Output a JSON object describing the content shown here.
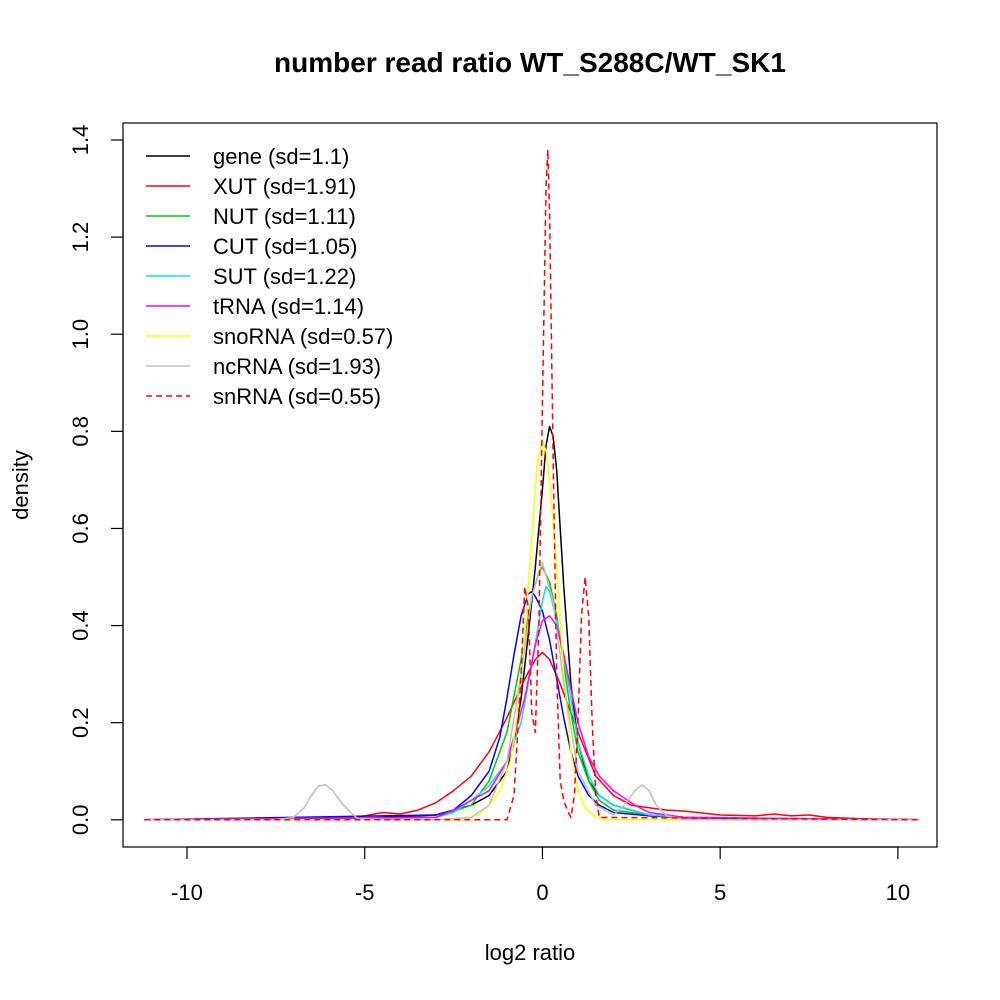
{
  "chart_data": {
    "type": "line",
    "title": "number read ratio WT_S288C/WT_SK1",
    "xlabel": "log2 ratio",
    "ylabel": "density",
    "xlim": [
      -11.8,
      11.1
    ],
    "ylim": [
      -0.056,
      1.435
    ],
    "xticks": [
      -10,
      -5,
      0,
      5,
      10
    ],
    "xtick_labels": [
      "-10",
      "-5",
      "0",
      "5",
      "10"
    ],
    "yticks": [
      0.0,
      0.2,
      0.4,
      0.6,
      0.8,
      1.0,
      1.2,
      1.4
    ],
    "ytick_labels": [
      "0.0",
      "0.2",
      "0.4",
      "0.6",
      "0.8",
      "1.0",
      "1.2",
      "1.4"
    ],
    "grid": false,
    "legend_position": "top-left",
    "series": [
      {
        "name": "gene (sd=1.1)",
        "color": "#000000",
        "dash": false,
        "x": [
          -11.2,
          -6,
          -3,
          -2,
          -1.5,
          -1.0,
          -0.8,
          -0.6,
          -0.4,
          -0.2,
          0.0,
          0.1,
          0.2,
          0.3,
          0.4,
          0.5,
          0.6,
          0.8,
          1.0,
          1.3,
          1.6,
          2.0,
          2.5,
          3.0,
          4.0,
          6.0,
          10.6
        ],
        "y": [
          0,
          0,
          0.01,
          0.03,
          0.05,
          0.1,
          0.16,
          0.25,
          0.38,
          0.52,
          0.68,
          0.77,
          0.81,
          0.79,
          0.72,
          0.6,
          0.48,
          0.28,
          0.16,
          0.08,
          0.05,
          0.03,
          0.02,
          0.01,
          0.005,
          0.003,
          0
        ]
      },
      {
        "name": "XUT (sd=1.91)",
        "color": "#ff0000",
        "dash": false,
        "x": [
          -11.2,
          -6,
          -5,
          -4.5,
          -4,
          -3.5,
          -3,
          -2.5,
          -2,
          -1.5,
          -1,
          -0.5,
          -0.2,
          0,
          0.2,
          0.5,
          1.0,
          1.5,
          2.0,
          2.5,
          3.0,
          3.5,
          4.0,
          5.0,
          6.0,
          6.5,
          7.0,
          7.5,
          8.0,
          9.0,
          10.6
        ],
        "y": [
          0,
          0.002,
          0.008,
          0.015,
          0.012,
          0.02,
          0.035,
          0.06,
          0.09,
          0.14,
          0.21,
          0.29,
          0.33,
          0.345,
          0.33,
          0.28,
          0.18,
          0.09,
          0.05,
          0.03,
          0.025,
          0.02,
          0.018,
          0.01,
          0.008,
          0.012,
          0.008,
          0.01,
          0.005,
          0.002,
          0
        ]
      },
      {
        "name": "NUT (sd=1.11)",
        "color": "#00cc00",
        "dash": false,
        "x": [
          -11.2,
          -3,
          -2,
          -1.5,
          -1.0,
          -0.6,
          -0.3,
          -0.1,
          0.0,
          0.2,
          0.4,
          0.6,
          0.8,
          1.0,
          1.3,
          1.6,
          2.0,
          3.0,
          4.0,
          10.6
        ],
        "y": [
          0,
          0.005,
          0.03,
          0.08,
          0.18,
          0.33,
          0.46,
          0.51,
          0.52,
          0.49,
          0.42,
          0.32,
          0.22,
          0.14,
          0.08,
          0.04,
          0.02,
          0.01,
          0.005,
          0
        ]
      },
      {
        "name": "CUT (sd=1.05)",
        "color": "#0000ff",
        "dash": false,
        "x": [
          -11.2,
          -3,
          -2.5,
          -2.0,
          -1.5,
          -1.2,
          -1.0,
          -0.8,
          -0.6,
          -0.4,
          -0.3,
          -0.2,
          0.0,
          0.2,
          0.4,
          0.6,
          0.8,
          1.0,
          1.3,
          1.6,
          2.0,
          3.0,
          4.0,
          10.6
        ],
        "y": [
          0,
          0.01,
          0.02,
          0.05,
          0.1,
          0.17,
          0.25,
          0.34,
          0.42,
          0.465,
          0.47,
          0.46,
          0.43,
          0.37,
          0.29,
          0.21,
          0.14,
          0.09,
          0.05,
          0.03,
          0.015,
          0.008,
          0.004,
          0
        ]
      },
      {
        "name": "SUT (sd=1.22)",
        "color": "#00e5ee",
        "dash": false,
        "x": [
          -11.2,
          -3,
          -2.5,
          -2,
          -1.5,
          -1.0,
          -0.6,
          -0.3,
          0.0,
          0.1,
          0.2,
          0.5,
          0.8,
          1.0,
          1.3,
          1.6,
          2.0,
          2.5,
          3.0,
          4.0,
          10.6
        ],
        "y": [
          0,
          0.005,
          0.015,
          0.04,
          0.07,
          0.12,
          0.2,
          0.32,
          0.45,
          0.48,
          0.47,
          0.38,
          0.25,
          0.16,
          0.09,
          0.05,
          0.03,
          0.02,
          0.01,
          0.005,
          0
        ]
      },
      {
        "name": "tRNA (sd=1.14)",
        "color": "#ff00ff",
        "dash": false,
        "x": [
          -11.2,
          -3,
          -2.5,
          -2,
          -1.5,
          -1.0,
          -0.5,
          -0.2,
          0.0,
          0.2,
          0.4,
          0.6,
          0.8,
          1.0,
          1.3,
          1.6,
          2.0,
          2.3,
          2.6,
          3.0,
          4.0,
          10.6
        ],
        "y": [
          0,
          0.005,
          0.02,
          0.04,
          0.06,
          0.12,
          0.25,
          0.36,
          0.41,
          0.42,
          0.4,
          0.34,
          0.27,
          0.2,
          0.13,
          0.09,
          0.06,
          0.045,
          0.03,
          0.015,
          0.005,
          0
        ]
      },
      {
        "name": "snoRNA (sd=0.57)",
        "color": "#ffff00",
        "dash": false,
        "x": [
          -11.2,
          -2.2,
          -1.8,
          -1.5,
          -1.2,
          -0.9,
          -0.7,
          -0.5,
          -0.3,
          -0.15,
          0.0,
          0.1,
          0.2,
          0.4,
          0.6,
          0.8,
          1.0,
          1.2,
          1.5,
          1.8,
          10.6
        ],
        "y": [
          0,
          0,
          0.01,
          0.03,
          0.06,
          0.12,
          0.22,
          0.38,
          0.58,
          0.73,
          0.78,
          0.76,
          0.7,
          0.52,
          0.3,
          0.14,
          0.06,
          0.025,
          0.005,
          0,
          0
        ]
      },
      {
        "name": "ncRNA (sd=1.93)",
        "color": "#bebebe",
        "dash": false,
        "x": [
          -11.2,
          -7.5,
          -7.0,
          -6.7,
          -6.5,
          -6.3,
          -6.1,
          -5.9,
          -5.6,
          -5.2,
          -3,
          -2.0,
          -1.5,
          -1.0,
          -0.6,
          -0.3,
          0.0,
          0.3,
          0.6,
          1.0,
          1.5,
          2.0,
          2.3,
          2.6,
          2.8,
          3.0,
          3.2,
          3.5,
          4.0,
          10.6
        ],
        "y": [
          0,
          0,
          0.005,
          0.025,
          0.05,
          0.07,
          0.072,
          0.06,
          0.03,
          0.002,
          0,
          0.005,
          0.03,
          0.12,
          0.3,
          0.46,
          0.53,
          0.45,
          0.28,
          0.1,
          0.03,
          0.01,
          0.03,
          0.06,
          0.072,
          0.06,
          0.03,
          0.008,
          0,
          0
        ]
      },
      {
        "name": "snRNA (sd=0.55)",
        "color": "#ff0000",
        "dash": true,
        "x": [
          -11.2,
          -1.0,
          -0.8,
          -0.6,
          -0.5,
          -0.4,
          -0.3,
          -0.2,
          -0.1,
          0.0,
          0.1,
          0.15,
          0.2,
          0.3,
          0.4,
          0.5,
          0.6,
          0.7,
          0.8,
          0.9,
          1.0,
          1.1,
          1.2,
          1.3,
          1.4,
          1.5,
          1.6,
          10.6
        ],
        "y": [
          0,
          0,
          0.05,
          0.3,
          0.48,
          0.44,
          0.22,
          0.18,
          0.4,
          0.85,
          1.3,
          1.38,
          1.25,
          0.75,
          0.3,
          0.08,
          0.04,
          0.02,
          0.005,
          0.05,
          0.2,
          0.42,
          0.5,
          0.42,
          0.2,
          0.05,
          0.005,
          0
        ]
      }
    ]
  }
}
